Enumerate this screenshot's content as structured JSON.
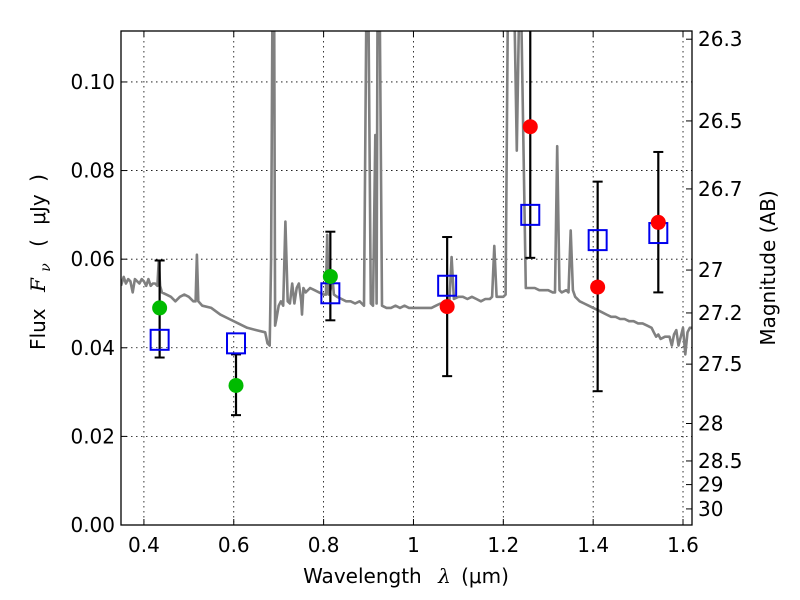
{
  "chart_data": {
    "type": "scatter",
    "title": "",
    "xlabel": "Wavelength",
    "xlabel_symbol": "λ",
    "xlabel_unit": "(μm)",
    "ylabel": "Flux",
    "ylabel_symbol": "F",
    "ylabel_subscript": "ν",
    "ylabel_unit_open": "(",
    "ylabel_unit": "μJy",
    "ylabel_unit_close": ")",
    "y2label": "Magnitude (AB)",
    "xlim": [
      0.349,
      1.62
    ],
    "ylim": [
      0.0,
      0.1115
    ],
    "grid": true,
    "x_ticks": [
      {
        "value": 0.4,
        "label": "0.4"
      },
      {
        "value": 0.6,
        "label": "0.6"
      },
      {
        "value": 0.8,
        "label": "0.8"
      },
      {
        "value": 1.0,
        "label": "1"
      },
      {
        "value": 1.2,
        "label": "1.2"
      },
      {
        "value": 1.4,
        "label": "1.4"
      },
      {
        "value": 1.6,
        "label": "1.6"
      }
    ],
    "y_ticks": [
      {
        "value": 0.0,
        "label": "0.00"
      },
      {
        "value": 0.02,
        "label": "0.02"
      },
      {
        "value": 0.04,
        "label": "0.04"
      },
      {
        "value": 0.06,
        "label": "0.06"
      },
      {
        "value": 0.08,
        "label": "0.08"
      },
      {
        "value": 0.1,
        "label": "0.10"
      }
    ],
    "y2_ticks": [
      {
        "mag": 26.3,
        "label": "26.3"
      },
      {
        "mag": 26.5,
        "label": "26.5"
      },
      {
        "mag": 26.7,
        "label": "26.7"
      },
      {
        "mag": 27.0,
        "label": "27"
      },
      {
        "mag": 27.2,
        "label": "27.2"
      },
      {
        "mag": 27.5,
        "label": "27.5"
      },
      {
        "mag": 28.0,
        "label": "28"
      },
      {
        "mag": 28.5,
        "label": "28.5"
      },
      {
        "mag": 29.0,
        "label": "29"
      },
      {
        "mag": 30.0,
        "label": "30"
      }
    ],
    "colors": {
      "spectrum": "#808080",
      "model_box": "#0000ee",
      "obs_green": "#00bb00",
      "obs_red": "#ff0000",
      "errorbar": "#000000"
    },
    "series": [
      {
        "name": "model-spectrum",
        "kind": "line",
        "points": [
          [
            0.349,
            0.054
          ],
          [
            0.355,
            0.056
          ],
          [
            0.36,
            0.0545
          ],
          [
            0.365,
            0.0555
          ],
          [
            0.37,
            0.055
          ],
          [
            0.375,
            0.0525
          ],
          [
            0.38,
            0.0555
          ],
          [
            0.385,
            0.055
          ],
          [
            0.39,
            0.0545
          ],
          [
            0.395,
            0.0555
          ],
          [
            0.4,
            0.055
          ],
          [
            0.405,
            0.054
          ],
          [
            0.41,
            0.0555
          ],
          [
            0.415,
            0.054
          ],
          [
            0.42,
            0.0545
          ],
          [
            0.425,
            0.0545
          ],
          [
            0.43,
            0.054
          ],
          [
            0.433,
            0.0595
          ],
          [
            0.436,
            0.054
          ],
          [
            0.44,
            0.0525
          ],
          [
            0.45,
            0.052
          ],
          [
            0.46,
            0.0515
          ],
          [
            0.47,
            0.0505
          ],
          [
            0.48,
            0.0515
          ],
          [
            0.49,
            0.052
          ],
          [
            0.5,
            0.0515
          ],
          [
            0.51,
            0.0505
          ],
          [
            0.515,
            0.0505
          ],
          [
            0.518,
            0.061
          ],
          [
            0.521,
            0.0505
          ],
          [
            0.53,
            0.0495
          ],
          [
            0.55,
            0.049
          ],
          [
            0.57,
            0.0475
          ],
          [
            0.59,
            0.0465
          ],
          [
            0.61,
            0.0455
          ],
          [
            0.63,
            0.0445
          ],
          [
            0.65,
            0.044
          ],
          [
            0.67,
            0.0435
          ],
          [
            0.675,
            0.041
          ],
          [
            0.68,
            0.0405
          ],
          [
            0.683,
            0.06
          ],
          [
            0.686,
            0.115
          ],
          [
            0.69,
            0.115
          ],
          [
            0.692,
            0.045
          ],
          [
            0.695,
            0.0465
          ],
          [
            0.7,
            0.0495
          ],
          [
            0.705,
            0.0505
          ],
          [
            0.71,
            0.0495
          ],
          [
            0.715,
            0.0685
          ],
          [
            0.72,
            0.0505
          ],
          [
            0.725,
            0.05
          ],
          [
            0.73,
            0.0545
          ],
          [
            0.735,
            0.05
          ],
          [
            0.74,
            0.0535
          ],
          [
            0.745,
            0.0545
          ],
          [
            0.75,
            0.0505
          ],
          [
            0.752,
            0.0475
          ],
          [
            0.755,
            0.0535
          ],
          [
            0.76,
            0.0525
          ],
          [
            0.77,
            0.0535
          ],
          [
            0.78,
            0.053
          ],
          [
            0.79,
            0.0525
          ],
          [
            0.8,
            0.052
          ],
          [
            0.805,
            0.052
          ],
          [
            0.808,
            0.0655
          ],
          [
            0.811,
            0.052
          ],
          [
            0.815,
            0.053
          ],
          [
            0.82,
            0.0555
          ],
          [
            0.823,
            0.052
          ],
          [
            0.83,
            0.0515
          ],
          [
            0.84,
            0.051
          ],
          [
            0.85,
            0.0505
          ],
          [
            0.86,
            0.0505
          ],
          [
            0.87,
            0.05
          ],
          [
            0.88,
            0.0505
          ],
          [
            0.885,
            0.05
          ],
          [
            0.89,
            0.0495
          ],
          [
            0.895,
            0.115
          ],
          [
            0.9,
            0.115
          ],
          [
            0.905,
            0.05
          ],
          [
            0.91,
            0.0495
          ],
          [
            0.915,
            0.088
          ],
          [
            0.918,
            0.05
          ],
          [
            0.92,
            0.115
          ],
          [
            0.925,
            0.115
          ],
          [
            0.93,
            0.0495
          ],
          [
            0.94,
            0.049
          ],
          [
            0.95,
            0.049
          ],
          [
            0.96,
            0.0495
          ],
          [
            0.97,
            0.049
          ],
          [
            0.98,
            0.0495
          ],
          [
            0.99,
            0.049
          ],
          [
            1.0,
            0.049
          ],
          [
            1.01,
            0.049
          ],
          [
            1.02,
            0.049
          ],
          [
            1.03,
            0.049
          ],
          [
            1.04,
            0.049
          ],
          [
            1.05,
            0.0495
          ],
          [
            1.06,
            0.05
          ],
          [
            1.07,
            0.05
          ],
          [
            1.075,
            0.0505
          ],
          [
            1.08,
            0.0505
          ],
          [
            1.085,
            0.0605
          ],
          [
            1.09,
            0.051
          ],
          [
            1.1,
            0.0515
          ],
          [
            1.11,
            0.0515
          ],
          [
            1.12,
            0.051
          ],
          [
            1.13,
            0.0515
          ],
          [
            1.14,
            0.051
          ],
          [
            1.15,
            0.0505
          ],
          [
            1.16,
            0.051
          ],
          [
            1.17,
            0.051
          ],
          [
            1.175,
            0.0515
          ],
          [
            1.18,
            0.063
          ],
          [
            1.185,
            0.0515
          ],
          [
            1.19,
            0.0515
          ],
          [
            1.2,
            0.0515
          ],
          [
            1.205,
            0.052
          ],
          [
            1.21,
            0.115
          ],
          [
            1.225,
            0.115
          ],
          [
            1.23,
            0.0845
          ],
          [
            1.235,
            0.115
          ],
          [
            1.24,
            0.115
          ],
          [
            1.25,
            0.0535
          ],
          [
            1.26,
            0.0535
          ],
          [
            1.27,
            0.0535
          ],
          [
            1.28,
            0.053
          ],
          [
            1.29,
            0.053
          ],
          [
            1.3,
            0.053
          ],
          [
            1.31,
            0.0525
          ],
          [
            1.315,
            0.0525
          ],
          [
            1.32,
            0.0855
          ],
          [
            1.325,
            0.053
          ],
          [
            1.33,
            0.0525
          ],
          [
            1.34,
            0.053
          ],
          [
            1.345,
            0.0525
          ],
          [
            1.35,
            0.0665
          ],
          [
            1.355,
            0.053
          ],
          [
            1.36,
            0.0515
          ],
          [
            1.37,
            0.0505
          ],
          [
            1.38,
            0.05
          ],
          [
            1.39,
            0.0495
          ],
          [
            1.4,
            0.049
          ],
          [
            1.41,
            0.0485
          ],
          [
            1.42,
            0.048
          ],
          [
            1.43,
            0.0475
          ],
          [
            1.44,
            0.047
          ],
          [
            1.45,
            0.047
          ],
          [
            1.46,
            0.0465
          ],
          [
            1.47,
            0.0465
          ],
          [
            1.48,
            0.046
          ],
          [
            1.49,
            0.046
          ],
          [
            1.5,
            0.0455
          ],
          [
            1.51,
            0.0455
          ],
          [
            1.52,
            0.045
          ],
          [
            1.53,
            0.0445
          ],
          [
            1.535,
            0.0435
          ],
          [
            1.54,
            0.0425
          ],
          [
            1.545,
            0.043
          ],
          [
            1.55,
            0.042
          ],
          [
            1.56,
            0.0425
          ],
          [
            1.57,
            0.0425
          ],
          [
            1.575,
            0.0405
          ],
          [
            1.58,
            0.043
          ],
          [
            1.585,
            0.044
          ],
          [
            1.59,
            0.0405
          ],
          [
            1.595,
            0.0425
          ],
          [
            1.6,
            0.0445
          ],
          [
            1.605,
            0.0385
          ],
          [
            1.61,
            0.0435
          ],
          [
            1.615,
            0.0445
          ],
          [
            1.62,
            0.0445
          ]
        ]
      },
      {
        "name": "model-photometry",
        "kind": "open-square",
        "points": [
          {
            "x": 0.435,
            "y": 0.0418
          },
          {
            "x": 0.605,
            "y": 0.041
          },
          {
            "x": 0.815,
            "y": 0.0523
          },
          {
            "x": 1.075,
            "y": 0.054
          },
          {
            "x": 1.26,
            "y": 0.07
          },
          {
            "x": 1.41,
            "y": 0.0643
          },
          {
            "x": 1.545,
            "y": 0.0659
          }
        ]
      },
      {
        "name": "observed-flux",
        "kind": "filled-circle-with-errorbar",
        "points": [
          {
            "x": 0.435,
            "y": 0.049,
            "err_low": 0.0378,
            "err_high": 0.0597,
            "color": "green"
          },
          {
            "x": 0.605,
            "y": 0.0315,
            "err_low": 0.0248,
            "err_high": 0.0385,
            "color": "green"
          },
          {
            "x": 0.815,
            "y": 0.0561,
            "err_low": 0.0462,
            "err_high": 0.0662,
            "color": "green"
          },
          {
            "x": 1.075,
            "y": 0.0493,
            "err_low": 0.0336,
            "err_high": 0.065,
            "color": "red"
          },
          {
            "x": 1.26,
            "y": 0.0899,
            "err_low": 0.0603,
            "err_high": 0.115,
            "color": "red"
          },
          {
            "x": 1.41,
            "y": 0.0537,
            "err_low": 0.0302,
            "err_high": 0.0775,
            "color": "red"
          },
          {
            "x": 1.545,
            "y": 0.0683,
            "err_low": 0.0525,
            "err_high": 0.0842,
            "color": "red"
          }
        ]
      }
    ]
  }
}
